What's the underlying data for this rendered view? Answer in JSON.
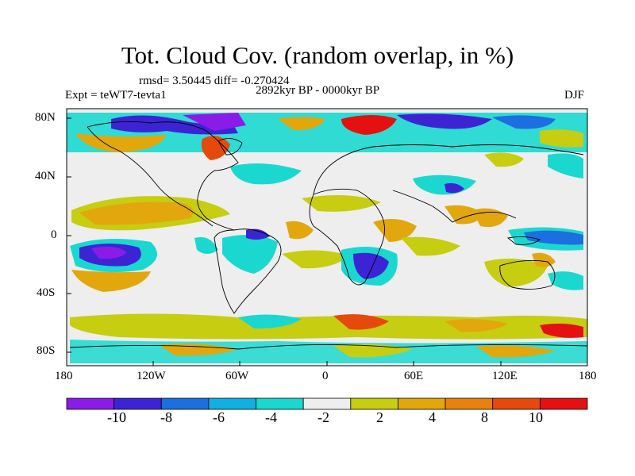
{
  "title": "Tot. Cloud Cov. (random overlap, in %)",
  "stats": "rmsd= 3.50445 diff= -0.270424",
  "experiment": "Expt = teWT7-tevta1",
  "period": "2892kyr BP - 0000kyr BP",
  "season": "DJF",
  "lon_ticks": [
    "180",
    "120W",
    "60W",
    "0",
    "60E",
    "120E",
    "180"
  ],
  "lat_ticks": [
    "80N",
    "40N",
    "0",
    "40S",
    "80S"
  ],
  "colorbar": {
    "colors": [
      "#8b1ce8",
      "#3c24d4",
      "#1b6fe0",
      "#11b0e3",
      "#1ad8cf",
      "#eeeeee",
      "#c7cd10",
      "#e2a70c",
      "#e8820c",
      "#e54a0c",
      "#e51010"
    ],
    "labels": [
      "-10",
      "-8",
      "-6",
      "-4",
      "-2",
      "2",
      "4",
      "8",
      "10"
    ]
  }
}
